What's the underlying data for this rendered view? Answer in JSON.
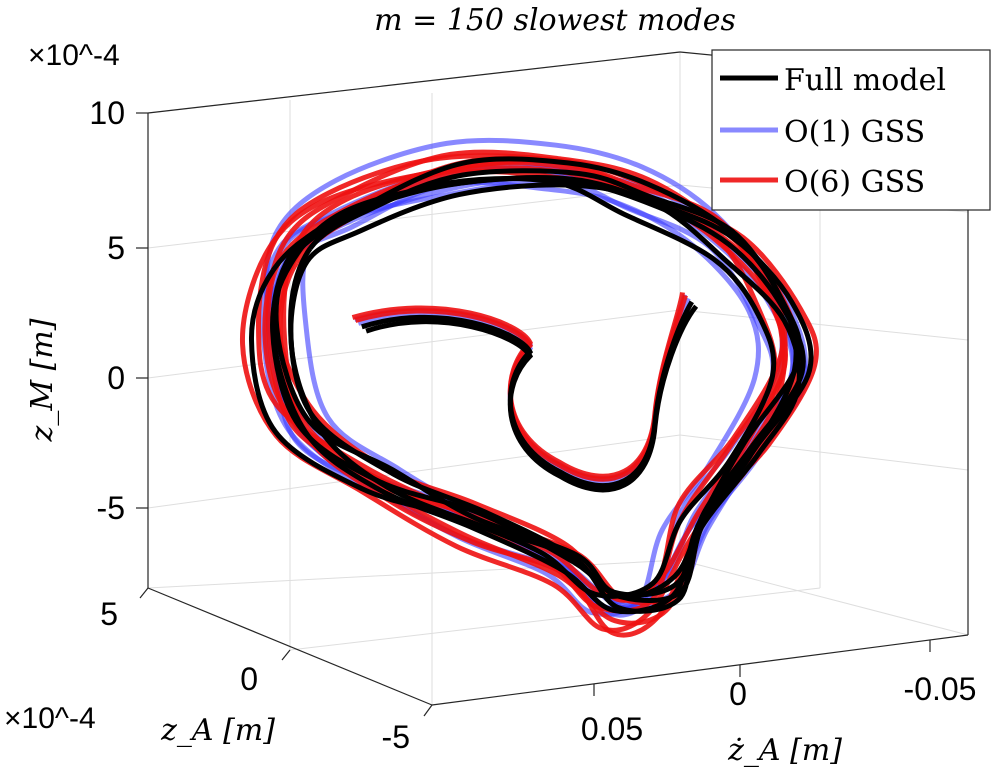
{
  "chart_data": {
    "type": "line3d",
    "title": "m = 150 slowest modes",
    "xlabel": "ż_A [m]",
    "ylabel": "z_A [m]",
    "zlabel": "z_M [m]",
    "x_ticks": [
      "0.05",
      "0",
      "-0.05"
    ],
    "y_ticks": [
      "5",
      "0",
      "-5"
    ],
    "z_ticks": [
      "10",
      "5",
      "0",
      "-5"
    ],
    "y_exponent": "×10^-4",
    "z_exponent": "×10^-4",
    "zlim": [
      -8,
      10
    ],
    "ylim": [
      -5,
      5
    ],
    "xlim": [
      -0.07,
      0.07
    ],
    "grid": true,
    "legend_position": "top-right",
    "series": [
      {
        "name": "Full model",
        "color": "#000000",
        "opacity": 1.0,
        "loops": 6,
        "seed": 3
      },
      {
        "name": "O(1) GSS",
        "color": "#3b3bff",
        "opacity": 0.6,
        "loops": 7,
        "seed": 11
      },
      {
        "name": "O(6) GSS",
        "color": "#ee1111",
        "opacity": 0.9,
        "loops": 7,
        "seed": 5
      }
    ]
  }
}
